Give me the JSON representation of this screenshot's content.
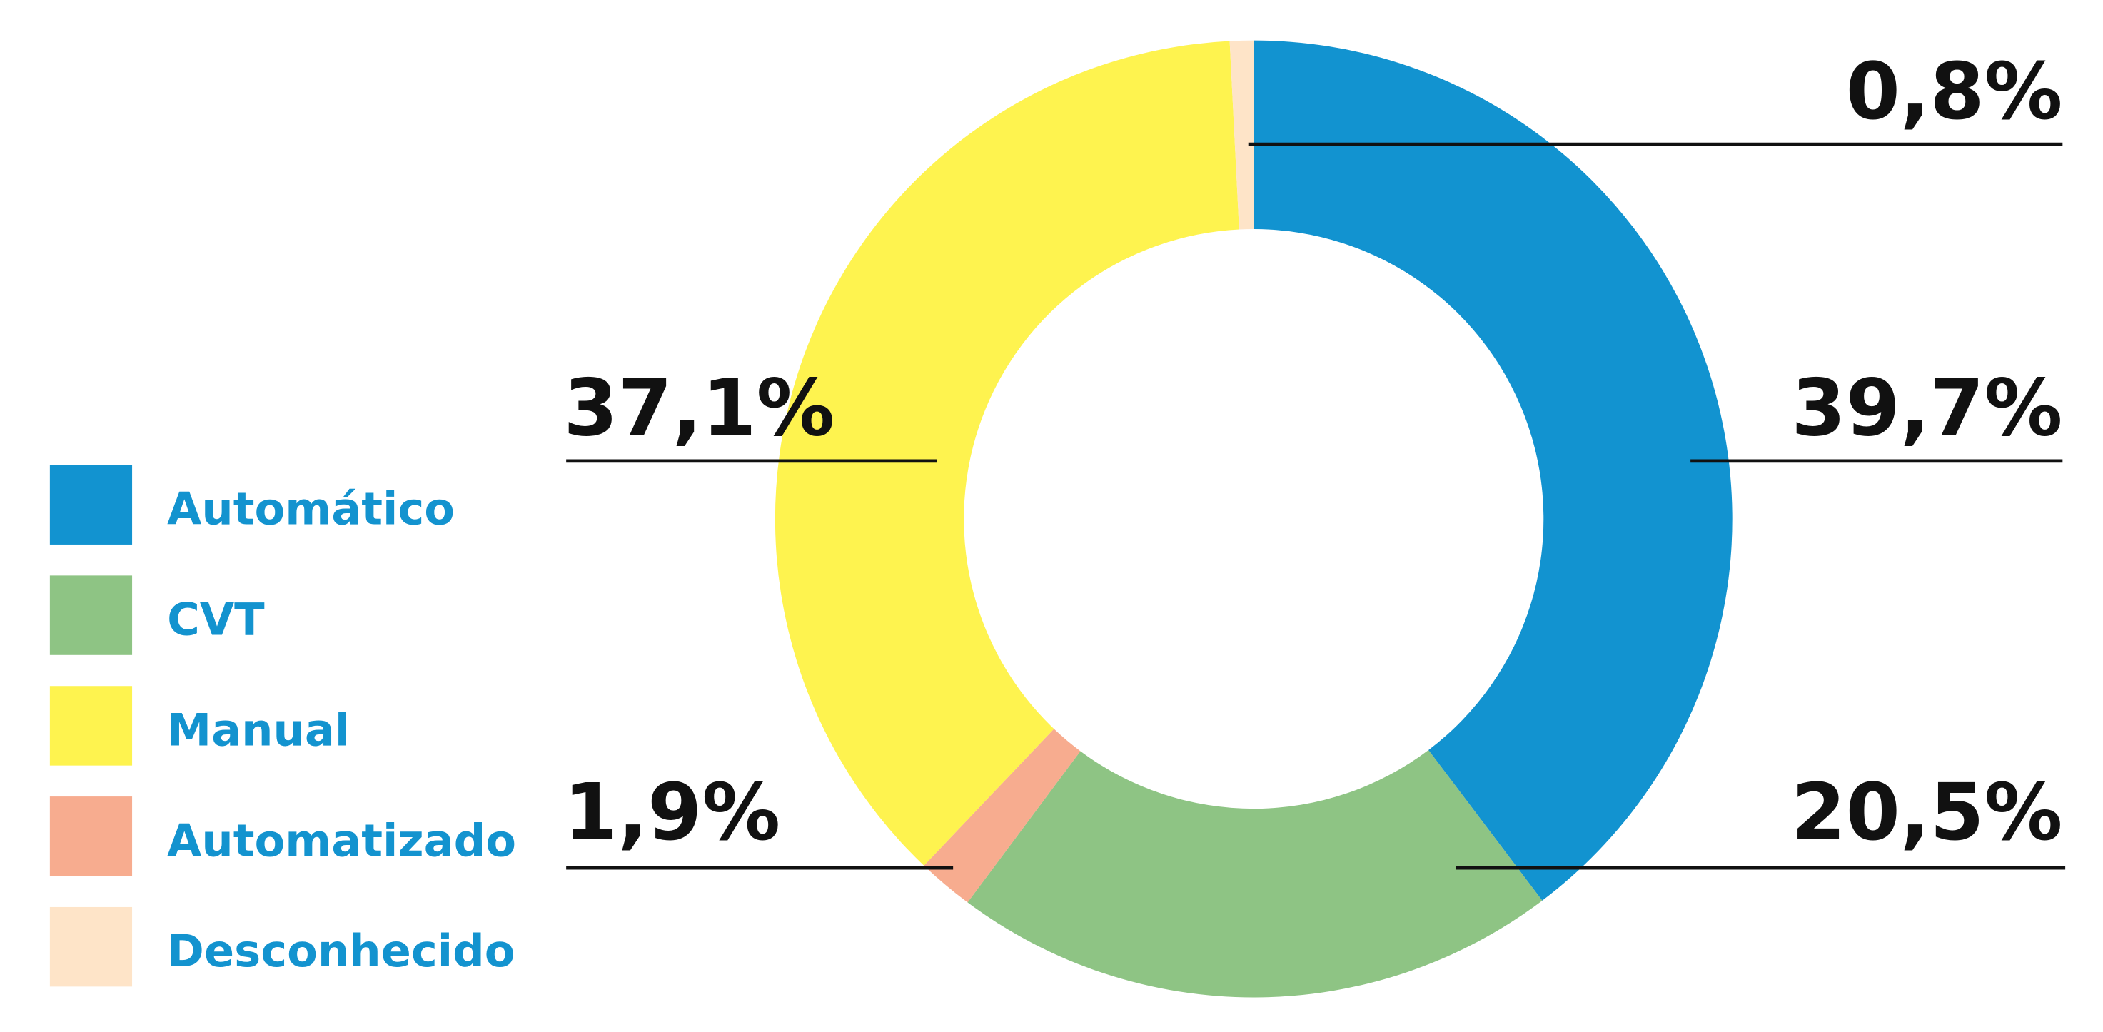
{
  "chart_data": {
    "type": "pie",
    "categories": [
      "Automático",
      "CVT",
      "Automatizado",
      "Manual",
      "Desconhecido"
    ],
    "values": [
      39.7,
      20.5,
      1.9,
      37.1,
      0.8
    ],
    "value_labels": [
      "39,7%",
      "20,5%",
      "1,9%",
      "37,1%",
      "0,8%"
    ],
    "colors": [
      "#1293d0",
      "#8ec484",
      "#f7ac8f",
      "#fef34f",
      "#fee4c8"
    ],
    "donut": true
  }
}
